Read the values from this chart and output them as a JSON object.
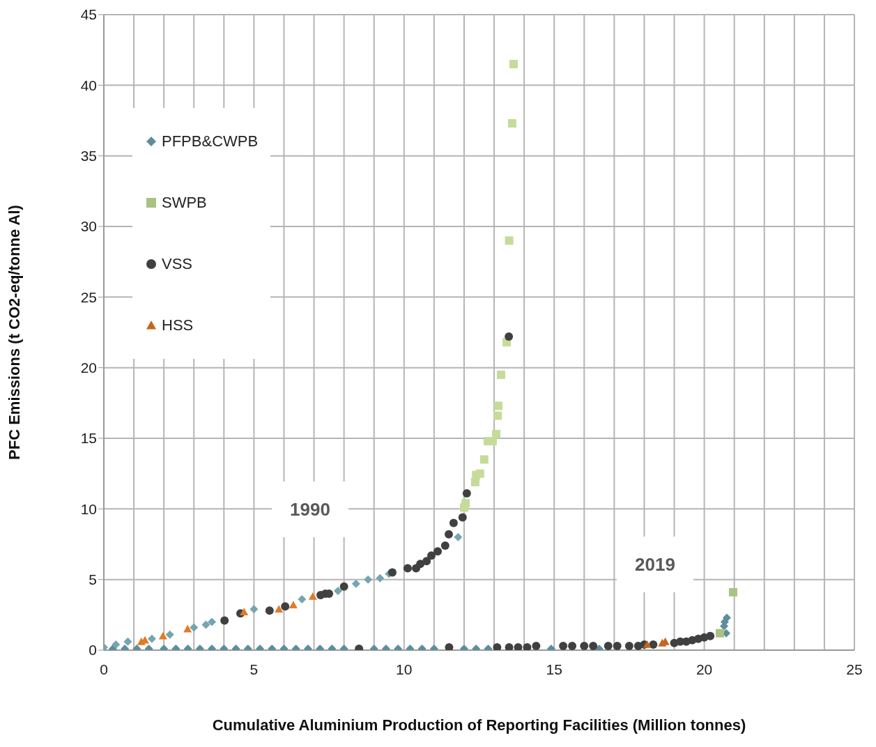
{
  "chart_data": {
    "type": "scatter",
    "xlabel": "Cumulative Aluminium Production of Reporting Facilities (Million tonnes)",
    "ylabel": "PFC Emissions (t CO2-eq/tonne Al)",
    "xlim": [
      0,
      25
    ],
    "ylim": [
      0,
      45
    ],
    "xticks": [
      0,
      {
        "value": 1,
        "label": null
      },
      {
        "value": 2,
        "label": null
      },
      {
        "value": 3,
        "label": null
      },
      {
        "value": 4,
        "label": null
      },
      5,
      {
        "value": 6,
        "label": null
      },
      {
        "value": 7,
        "label": null
      },
      {
        "value": 8,
        "label": null
      },
      {
        "value": 9,
        "label": null
      },
      10,
      {
        "value": 11,
        "label": null
      },
      {
        "value": 12,
        "label": null
      },
      {
        "value": 13,
        "label": null
      },
      {
        "value": 14,
        "label": null
      },
      15,
      {
        "value": 16,
        "label": null
      },
      {
        "value": 17,
        "label": null
      },
      {
        "value": 18,
        "label": null
      },
      {
        "value": 19,
        "label": null
      },
      20,
      {
        "value": 21,
        "label": null
      },
      {
        "value": 22,
        "label": null
      },
      {
        "value": 23,
        "label": null
      },
      {
        "value": 24,
        "label": null
      },
      25
    ],
    "yticks": [
      0,
      5,
      10,
      15,
      20,
      25,
      30,
      35,
      40,
      45
    ],
    "grid": true,
    "legend": "top left",
    "annotations": [
      "1990",
      "2019"
    ],
    "series": [
      {
        "name": "PFPB&CWPB",
        "color": "#5f8e9a",
        "marker": "diamond",
        "x": [
          0.3,
          0.7,
          1.1,
          1.5,
          2.0,
          2.4,
          2.8,
          3.2,
          3.6,
          4.0,
          4.4,
          4.8,
          5.2,
          5.6,
          6.0,
          6.4,
          6.8,
          7.2,
          7.6,
          8.0,
          9.0,
          9.4,
          9.8,
          10.2,
          10.6,
          11.0,
          12.0,
          12.4,
          12.8,
          14.9,
          16.5,
          20.73,
          20.66,
          20.68,
          20.75
        ],
        "values": [
          0.1,
          0.1,
          0.1,
          0.1,
          0.1,
          0.1,
          0.1,
          0.1,
          0.1,
          0.1,
          0.1,
          0.1,
          0.1,
          0.1,
          0.1,
          0.1,
          0.1,
          0.1,
          0.1,
          0.1,
          0.1,
          0.1,
          0.1,
          0.1,
          0.1,
          0.1,
          0.1,
          0.1,
          0.1,
          0.1,
          0.1,
          1.2,
          1.7,
          2.0,
          2.3
        ]
      },
      {
        "name": "SWPB",
        "color": "#a9c284",
        "marker": "square",
        "x": [
          20.52,
          20.96
        ],
        "values": [
          1.2,
          4.1
        ]
      },
      {
        "name": "VSS",
        "color": "#404040",
        "marker": "circle",
        "x": [
          8.5,
          11.5,
          13.1,
          13.5,
          13.8,
          14.1,
          14.4,
          15.3,
          15.6,
          16.0,
          16.3,
          16.8,
          17.1,
          17.5,
          17.8,
          18.0,
          18.3,
          19.0,
          19.2,
          19.4,
          19.6,
          19.8,
          20.0,
          20.2
        ],
        "values": [
          0.1,
          0.2,
          0.2,
          0.2,
          0.2,
          0.2,
          0.3,
          0.3,
          0.3,
          0.3,
          0.3,
          0.3,
          0.3,
          0.3,
          0.3,
          0.4,
          0.4,
          0.5,
          0.6,
          0.6,
          0.7,
          0.8,
          0.9,
          1.0
        ]
      },
      {
        "name": "HSS",
        "color": "#c4661f",
        "marker": "triangle",
        "x": [
          18.1,
          18.6,
          18.7
        ],
        "values": [
          0.4,
          0.5,
          0.6
        ]
      },
      {
        "color": "#75a5b0",
        "marker": "diamond",
        "x": [
          0.0,
          0.4,
          0.8,
          1.6,
          2.2,
          3.0,
          3.4,
          3.6,
          5.0,
          6.6,
          7.8,
          8.4,
          8.8,
          9.2,
          9.5,
          11.8
        ],
        "values": [
          0.2,
          0.4,
          0.6,
          0.8,
          1.1,
          1.6,
          1.8,
          2.0,
          2.9,
          3.6,
          4.2,
          4.7,
          5.0,
          5.1,
          5.4,
          8.0
        ]
      },
      {
        "color": "#c6db9a",
        "marker": "square",
        "x": [
          12.0,
          12.05,
          12.37,
          12.4,
          12.53,
          12.67,
          12.79,
          12.95,
          13.07,
          13.12,
          13.14,
          13.23,
          13.42,
          13.5,
          13.6,
          13.65
        ],
        "values": [
          10.1,
          10.4,
          11.9,
          12.4,
          12.5,
          13.5,
          14.8,
          14.8,
          15.3,
          16.6,
          17.3,
          19.5,
          21.8,
          29.0,
          37.3,
          41.5
        ]
      },
      {
        "color": "#404040",
        "marker": "circle",
        "x": [
          4.02,
          4.55,
          5.52,
          6.04,
          7.22,
          7.38,
          7.5,
          8.0,
          9.61,
          10.12,
          10.4,
          10.54,
          10.75,
          10.91,
          11.12,
          11.37,
          11.49,
          11.65,
          11.95,
          12.09,
          13.49
        ],
        "values": [
          2.1,
          2.6,
          2.8,
          3.1,
          3.9,
          4.0,
          4.0,
          4.5,
          5.5,
          5.8,
          5.8,
          6.1,
          6.3,
          6.7,
          7.0,
          7.4,
          8.2,
          9.0,
          9.4,
          11.1,
          22.2
        ]
      },
      {
        "color": "#e07b27",
        "marker": "triangle",
        "x": [
          1.25,
          1.37,
          1.97,
          2.79,
          4.67,
          5.83,
          6.31,
          6.96
        ],
        "values": [
          0.6,
          0.7,
          1.0,
          1.5,
          2.7,
          2.9,
          3.2,
          3.8
        ]
      }
    ]
  }
}
